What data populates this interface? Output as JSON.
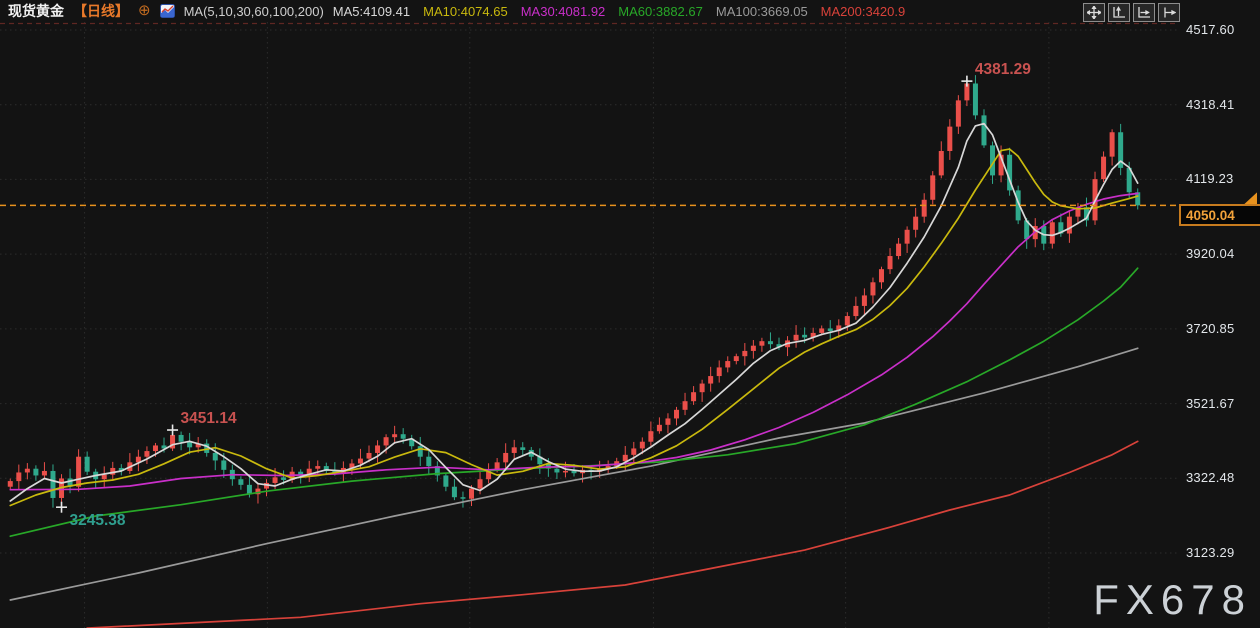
{
  "header": {
    "symbol": "现货黄金",
    "period": "【日线】",
    "ma_settings": "MA(5,10,30,60,100,200)"
  },
  "icons": {
    "add_indicator": "⊕"
  },
  "toolbar": {
    "buttons": [
      {
        "icon": "pan-icon"
      },
      {
        "icon": "fit-y-axis-icon"
      },
      {
        "icon": "fit-x-axis-icon"
      },
      {
        "icon": "jump-to-latest-icon"
      }
    ]
  },
  "watermark": "FX678",
  "colors": {
    "background": "#131313",
    "up_candle": "#ea4f4a",
    "down_candle": "#2fa98c",
    "accent_orange": "#e8921e",
    "grid": "#2c2c2c",
    "top_dashed_line": "#5f2723",
    "axis_text": "#e2e6ea",
    "cross_marker": "#e8e8e8",
    "annotation_red": "#c85250",
    "annotation_teal": "#2f9e8e",
    "watermark": "#ccd1d6"
  },
  "chart_data": {
    "type": "candlestick",
    "title": "现货黄金 日线",
    "legend_position": "top",
    "grid": "dotted",
    "last_price": 4050.04,
    "last_price_label": "4050.04",
    "y_axis": {
      "ticks": [
        "4517.60",
        "4318.41",
        "4119.23",
        "3920.04",
        "3720.85",
        "3521.67",
        "3322.48",
        "3123.29"
      ]
    },
    "v_grid_indices": [
      8.7,
      30.1,
      53.8,
      75.3,
      97.8,
      121.6
    ],
    "candles": {
      "first_open": 3300,
      "closes": [
        3315,
        3338,
        3348,
        3330,
        3342,
        3270,
        3322,
        3300,
        3380,
        3340,
        3320,
        3332,
        3350,
        3342,
        3365,
        3380,
        3395,
        3410,
        3402,
        3438,
        3420,
        3405,
        3415,
        3390,
        3370,
        3345,
        3320,
        3305,
        3280,
        3295,
        3310,
        3325,
        3318,
        3340,
        3332,
        3348,
        3355,
        3342,
        3336,
        3350,
        3362,
        3375,
        3390,
        3410,
        3432,
        3440,
        3428,
        3408,
        3380,
        3355,
        3330,
        3300,
        3272,
        3268,
        3295,
        3320,
        3345,
        3365,
        3390,
        3405,
        3398,
        3380,
        3360,
        3348,
        3338,
        3342,
        3336,
        3345,
        3340,
        3348,
        3355,
        3368,
        3385,
        3402,
        3420,
        3448,
        3465,
        3482,
        3505,
        3528,
        3552,
        3575,
        3595,
        3618,
        3635,
        3648,
        3662,
        3676,
        3688,
        3680,
        3672,
        3690,
        3705,
        3698,
        3710,
        3722,
        3715,
        3730,
        3755,
        3782,
        3810,
        3845,
        3880,
        3915,
        3948,
        3985,
        4020,
        4065,
        4130,
        4195,
        4260,
        4330,
        4375,
        4290,
        4210,
        4130,
        4185,
        4090,
        4010,
        3960,
        3995,
        3948,
        4005,
        3975,
        4020,
        4045,
        4010,
        4120,
        4180,
        4245,
        4150,
        4085,
        4050.04
      ],
      "extremes": {
        "6": {
          "low": 3245.38
        },
        "19": {
          "high": 3451.14
        },
        "112": {
          "high": 4381.29
        }
      }
    },
    "annotations": [
      {
        "text": "3245.38",
        "candle_index": 6,
        "attach": "low",
        "color": "#2f9e8e",
        "marker": "cross"
      },
      {
        "text": "3451.14",
        "candle_index": 19,
        "attach": "high",
        "color": "#c85250",
        "marker": "cross"
      },
      {
        "text": "4381.29",
        "candle_index": 112,
        "attach": "high",
        "color": "#c85250",
        "marker": "cross"
      }
    ],
    "ma_lines": [
      {
        "name": "MA5",
        "label": "MA5:4109.41",
        "value": 4109.41,
        "color": "#d8d8d8",
        "points": [
          [
            0,
            3262
          ],
          [
            2,
            3295
          ],
          [
            4,
            3322
          ],
          [
            6,
            3310
          ],
          [
            8,
            3320
          ],
          [
            10,
            3330
          ],
          [
            13,
            3342
          ],
          [
            16,
            3374
          ],
          [
            19,
            3412
          ],
          [
            21,
            3421
          ],
          [
            23,
            3408
          ],
          [
            25,
            3380
          ],
          [
            27,
            3348
          ],
          [
            29,
            3308
          ],
          [
            31,
            3302
          ],
          [
            33,
            3320
          ],
          [
            35,
            3333
          ],
          [
            37,
            3345
          ],
          [
            39,
            3342
          ],
          [
            41,
            3357
          ],
          [
            43,
            3381
          ],
          [
            45,
            3417
          ],
          [
            47,
            3428
          ],
          [
            49,
            3399
          ],
          [
            51,
            3351
          ],
          [
            53,
            3305
          ],
          [
            55,
            3290
          ],
          [
            57,
            3320
          ],
          [
            59,
            3373
          ],
          [
            61,
            3392
          ],
          [
            63,
            3367
          ],
          [
            65,
            3347
          ],
          [
            67,
            3341
          ],
          [
            69,
            3342
          ],
          [
            71,
            3353
          ],
          [
            73,
            3377
          ],
          [
            75,
            3406
          ],
          [
            77,
            3438
          ],
          [
            79,
            3468
          ],
          [
            81,
            3506
          ],
          [
            83,
            3546
          ],
          [
            85,
            3586
          ],
          [
            87,
            3629
          ],
          [
            89,
            3663
          ],
          [
            91,
            3682
          ],
          [
            93,
            3690
          ],
          [
            95,
            3706
          ],
          [
            97,
            3717
          ],
          [
            99,
            3736
          ],
          [
            101,
            3779
          ],
          [
            103,
            3831
          ],
          [
            105,
            3896
          ],
          [
            107,
            3966
          ],
          [
            109,
            4049
          ],
          [
            111,
            4152
          ],
          [
            112,
            4222
          ],
          [
            113,
            4262
          ],
          [
            114,
            4268
          ],
          [
            115,
            4238
          ],
          [
            116,
            4178
          ],
          [
            117,
            4118
          ],
          [
            118,
            4058
          ],
          [
            119,
            4008
          ],
          [
            120,
            3984
          ],
          [
            121,
            3972
          ],
          [
            122,
            3970
          ],
          [
            123,
            3978
          ],
          [
            124,
            3989
          ],
          [
            126,
            4016
          ],
          [
            127,
            4062
          ],
          [
            128,
            4106
          ],
          [
            129,
            4146
          ],
          [
            130,
            4168
          ],
          [
            131,
            4151
          ],
          [
            132,
            4109.41
          ]
        ]
      },
      {
        "name": "MA10",
        "label": "MA10:4074.65",
        "value": 4074.65,
        "color": "#c9b90e",
        "points": [
          [
            0,
            3250
          ],
          [
            3,
            3278
          ],
          [
            6,
            3298
          ],
          [
            9,
            3310
          ],
          [
            12,
            3318
          ],
          [
            15,
            3333
          ],
          [
            18,
            3361
          ],
          [
            21,
            3392
          ],
          [
            24,
            3404
          ],
          [
            27,
            3382
          ],
          [
            30,
            3348
          ],
          [
            33,
            3323
          ],
          [
            36,
            3330
          ],
          [
            39,
            3341
          ],
          [
            42,
            3353
          ],
          [
            45,
            3379
          ],
          [
            48,
            3401
          ],
          [
            51,
            3391
          ],
          [
            54,
            3359
          ],
          [
            57,
            3331
          ],
          [
            60,
            3341
          ],
          [
            63,
            3362
          ],
          [
            66,
            3357
          ],
          [
            69,
            3347
          ],
          [
            72,
            3353
          ],
          [
            75,
            3377
          ],
          [
            78,
            3409
          ],
          [
            81,
            3453
          ],
          [
            84,
            3506
          ],
          [
            87,
            3561
          ],
          [
            90,
            3616
          ],
          [
            93,
            3659
          ],
          [
            95,
            3681
          ],
          [
            97,
            3701
          ],
          [
            99,
            3719
          ],
          [
            101,
            3746
          ],
          [
            103,
            3783
          ],
          [
            105,
            3829
          ],
          [
            107,
            3886
          ],
          [
            109,
            3949
          ],
          [
            111,
            4016
          ],
          [
            113,
            4091
          ],
          [
            115,
            4161
          ],
          [
            116,
            4196
          ],
          [
            117,
            4200
          ],
          [
            118,
            4181
          ],
          [
            119,
            4146
          ],
          [
            120,
            4111
          ],
          [
            121,
            4079
          ],
          [
            122,
            4059
          ],
          [
            123,
            4049
          ],
          [
            125,
            4041
          ],
          [
            127,
            4043
          ],
          [
            129,
            4056
          ],
          [
            131,
            4068
          ],
          [
            132,
            4074.65
          ]
        ]
      },
      {
        "name": "MA30",
        "label": "MA30:4081.92",
        "value": 4081.92,
        "color": "#c92fc9",
        "points": [
          [
            0,
            3292
          ],
          [
            8,
            3293
          ],
          [
            14,
            3302
          ],
          [
            20,
            3322
          ],
          [
            26,
            3332
          ],
          [
            32,
            3330
          ],
          [
            38,
            3334
          ],
          [
            44,
            3345
          ],
          [
            50,
            3352
          ],
          [
            56,
            3345
          ],
          [
            62,
            3352
          ],
          [
            68,
            3355
          ],
          [
            74,
            3365
          ],
          [
            78,
            3378
          ],
          [
            82,
            3398
          ],
          [
            86,
            3425
          ],
          [
            90,
            3458
          ],
          [
            94,
            3498
          ],
          [
            98,
            3545
          ],
          [
            102,
            3598
          ],
          [
            105,
            3645
          ],
          [
            108,
            3700
          ],
          [
            110,
            3742
          ],
          [
            112,
            3788
          ],
          [
            114,
            3840
          ],
          [
            116,
            3890
          ],
          [
            118,
            3940
          ],
          [
            120,
            3980
          ],
          [
            122,
            4012
          ],
          [
            124,
            4035
          ],
          [
            126,
            4053
          ],
          [
            128,
            4067
          ],
          [
            130,
            4076
          ],
          [
            132,
            4081.92
          ]
        ]
      },
      {
        "name": "MA60",
        "label": "MA60:3882.67",
        "value": 3882.67,
        "color": "#28a828",
        "points": [
          [
            0,
            3168
          ],
          [
            10,
            3222
          ],
          [
            20,
            3252
          ],
          [
            30,
            3288
          ],
          [
            40,
            3315
          ],
          [
            50,
            3335
          ],
          [
            60,
            3348
          ],
          [
            68,
            3356
          ],
          [
            76,
            3366
          ],
          [
            84,
            3385
          ],
          [
            92,
            3415
          ],
          [
            100,
            3465
          ],
          [
            106,
            3520
          ],
          [
            112,
            3580
          ],
          [
            117,
            3638
          ],
          [
            121,
            3688
          ],
          [
            125,
            3745
          ],
          [
            128,
            3795
          ],
          [
            130,
            3832
          ],
          [
            132,
            3882.67
          ]
        ]
      },
      {
        "name": "MA100",
        "label": "MA100:3669.05",
        "value": 3669.05,
        "color": "#9a9a9a",
        "points": [
          [
            0,
            2998
          ],
          [
            15,
            3070
          ],
          [
            30,
            3148
          ],
          [
            45,
            3222
          ],
          [
            60,
            3292
          ],
          [
            75,
            3355
          ],
          [
            90,
            3430
          ],
          [
            100,
            3470
          ],
          [
            107,
            3510
          ],
          [
            114,
            3550
          ],
          [
            120,
            3588
          ],
          [
            125,
            3620
          ],
          [
            129,
            3648
          ],
          [
            132,
            3669.05
          ]
        ]
      },
      {
        "name": "MA200",
        "label": "MA200:3420.9",
        "value": 3420.9,
        "color": "#d8423a",
        "points": [
          [
            9,
            2923
          ],
          [
            22,
            2938
          ],
          [
            34,
            2952
          ],
          [
            48,
            2988
          ],
          [
            60,
            3012
          ],
          [
            72,
            3038
          ],
          [
            82,
            3082
          ],
          [
            93,
            3131
          ],
          [
            103,
            3192
          ],
          [
            110,
            3238
          ],
          [
            117,
            3278
          ],
          [
            124,
            3338
          ],
          [
            129,
            3385
          ],
          [
            132,
            3420.9
          ]
        ]
      }
    ]
  }
}
